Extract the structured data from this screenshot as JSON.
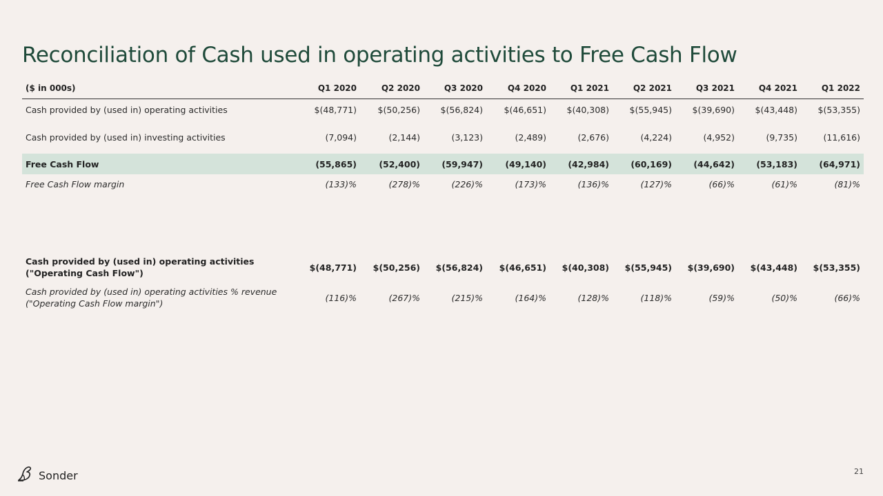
{
  "title": "Reconciliation of Cash used in operating activities to Free Cash Flow",
  "table": {
    "unit_header": "($ in 000s)",
    "columns": [
      "Q1 2020",
      "Q2 2020",
      "Q3 2020",
      "Q4 2020",
      "Q1 2021",
      "Q2 2021",
      "Q3 2021",
      "Q4 2021",
      "Q1 2022"
    ],
    "rows": {
      "operating": {
        "label": "Cash provided by (used in) operating activities",
        "values": [
          "$(48,771)",
          "$(50,256)",
          "$(56,824)",
          "$(46,651)",
          "$(40,308)",
          "$(55,945)",
          "$(39,690)",
          "$(43,448)",
          "$(53,355)"
        ]
      },
      "investing": {
        "label": "Cash provided by (used in) investing activities",
        "values": [
          "(7,094)",
          "(2,144)",
          "(3,123)",
          "(2,489)",
          "(2,676)",
          "(4,224)",
          "(4,952)",
          "(9,735)",
          "(11,616)"
        ]
      },
      "fcf": {
        "label": "Free Cash Flow",
        "values": [
          "(55,865)",
          "(52,400)",
          "(59,947)",
          "(49,140)",
          "(42,984)",
          "(60,169)",
          "(44,642)",
          "(53,183)",
          "(64,971)"
        ]
      },
      "fcf_margin": {
        "label": "Free Cash Flow margin",
        "values": [
          "(133)%",
          "(278)%",
          "(226)%",
          "(173)%",
          "(136)%",
          "(127)%",
          "(66)%",
          "(61)%",
          "(81)%"
        ]
      }
    }
  },
  "ocf_table": {
    "rows": {
      "ocf": {
        "label_line1": "Cash provided by (used in) operating activities",
        "label_line2": "(\"Operating Cash Flow\")",
        "values": [
          "$(48,771)",
          "$(50,256)",
          "$(56,824)",
          "$(46,651)",
          "$(40,308)",
          "$(55,945)",
          "$(39,690)",
          "$(43,448)",
          "$(53,355)"
        ]
      },
      "ocf_margin": {
        "label_line1": "Cash provided by (used in) operating activities % revenue",
        "label_line2": "(\"Operating Cash Flow margin\")",
        "values": [
          "(116)%",
          "(267)%",
          "(215)%",
          "(164)%",
          "(128)%",
          "(118)%",
          "(59)%",
          "(50)%",
          "(66)%"
        ]
      }
    }
  },
  "footer": {
    "logo_text": "Sonder",
    "logo_icon": "bird-icon",
    "page_number": "21"
  },
  "colors": {
    "background": "#f5f0ed",
    "title": "#1f4a3a",
    "highlight_row": "#d4e3da"
  }
}
